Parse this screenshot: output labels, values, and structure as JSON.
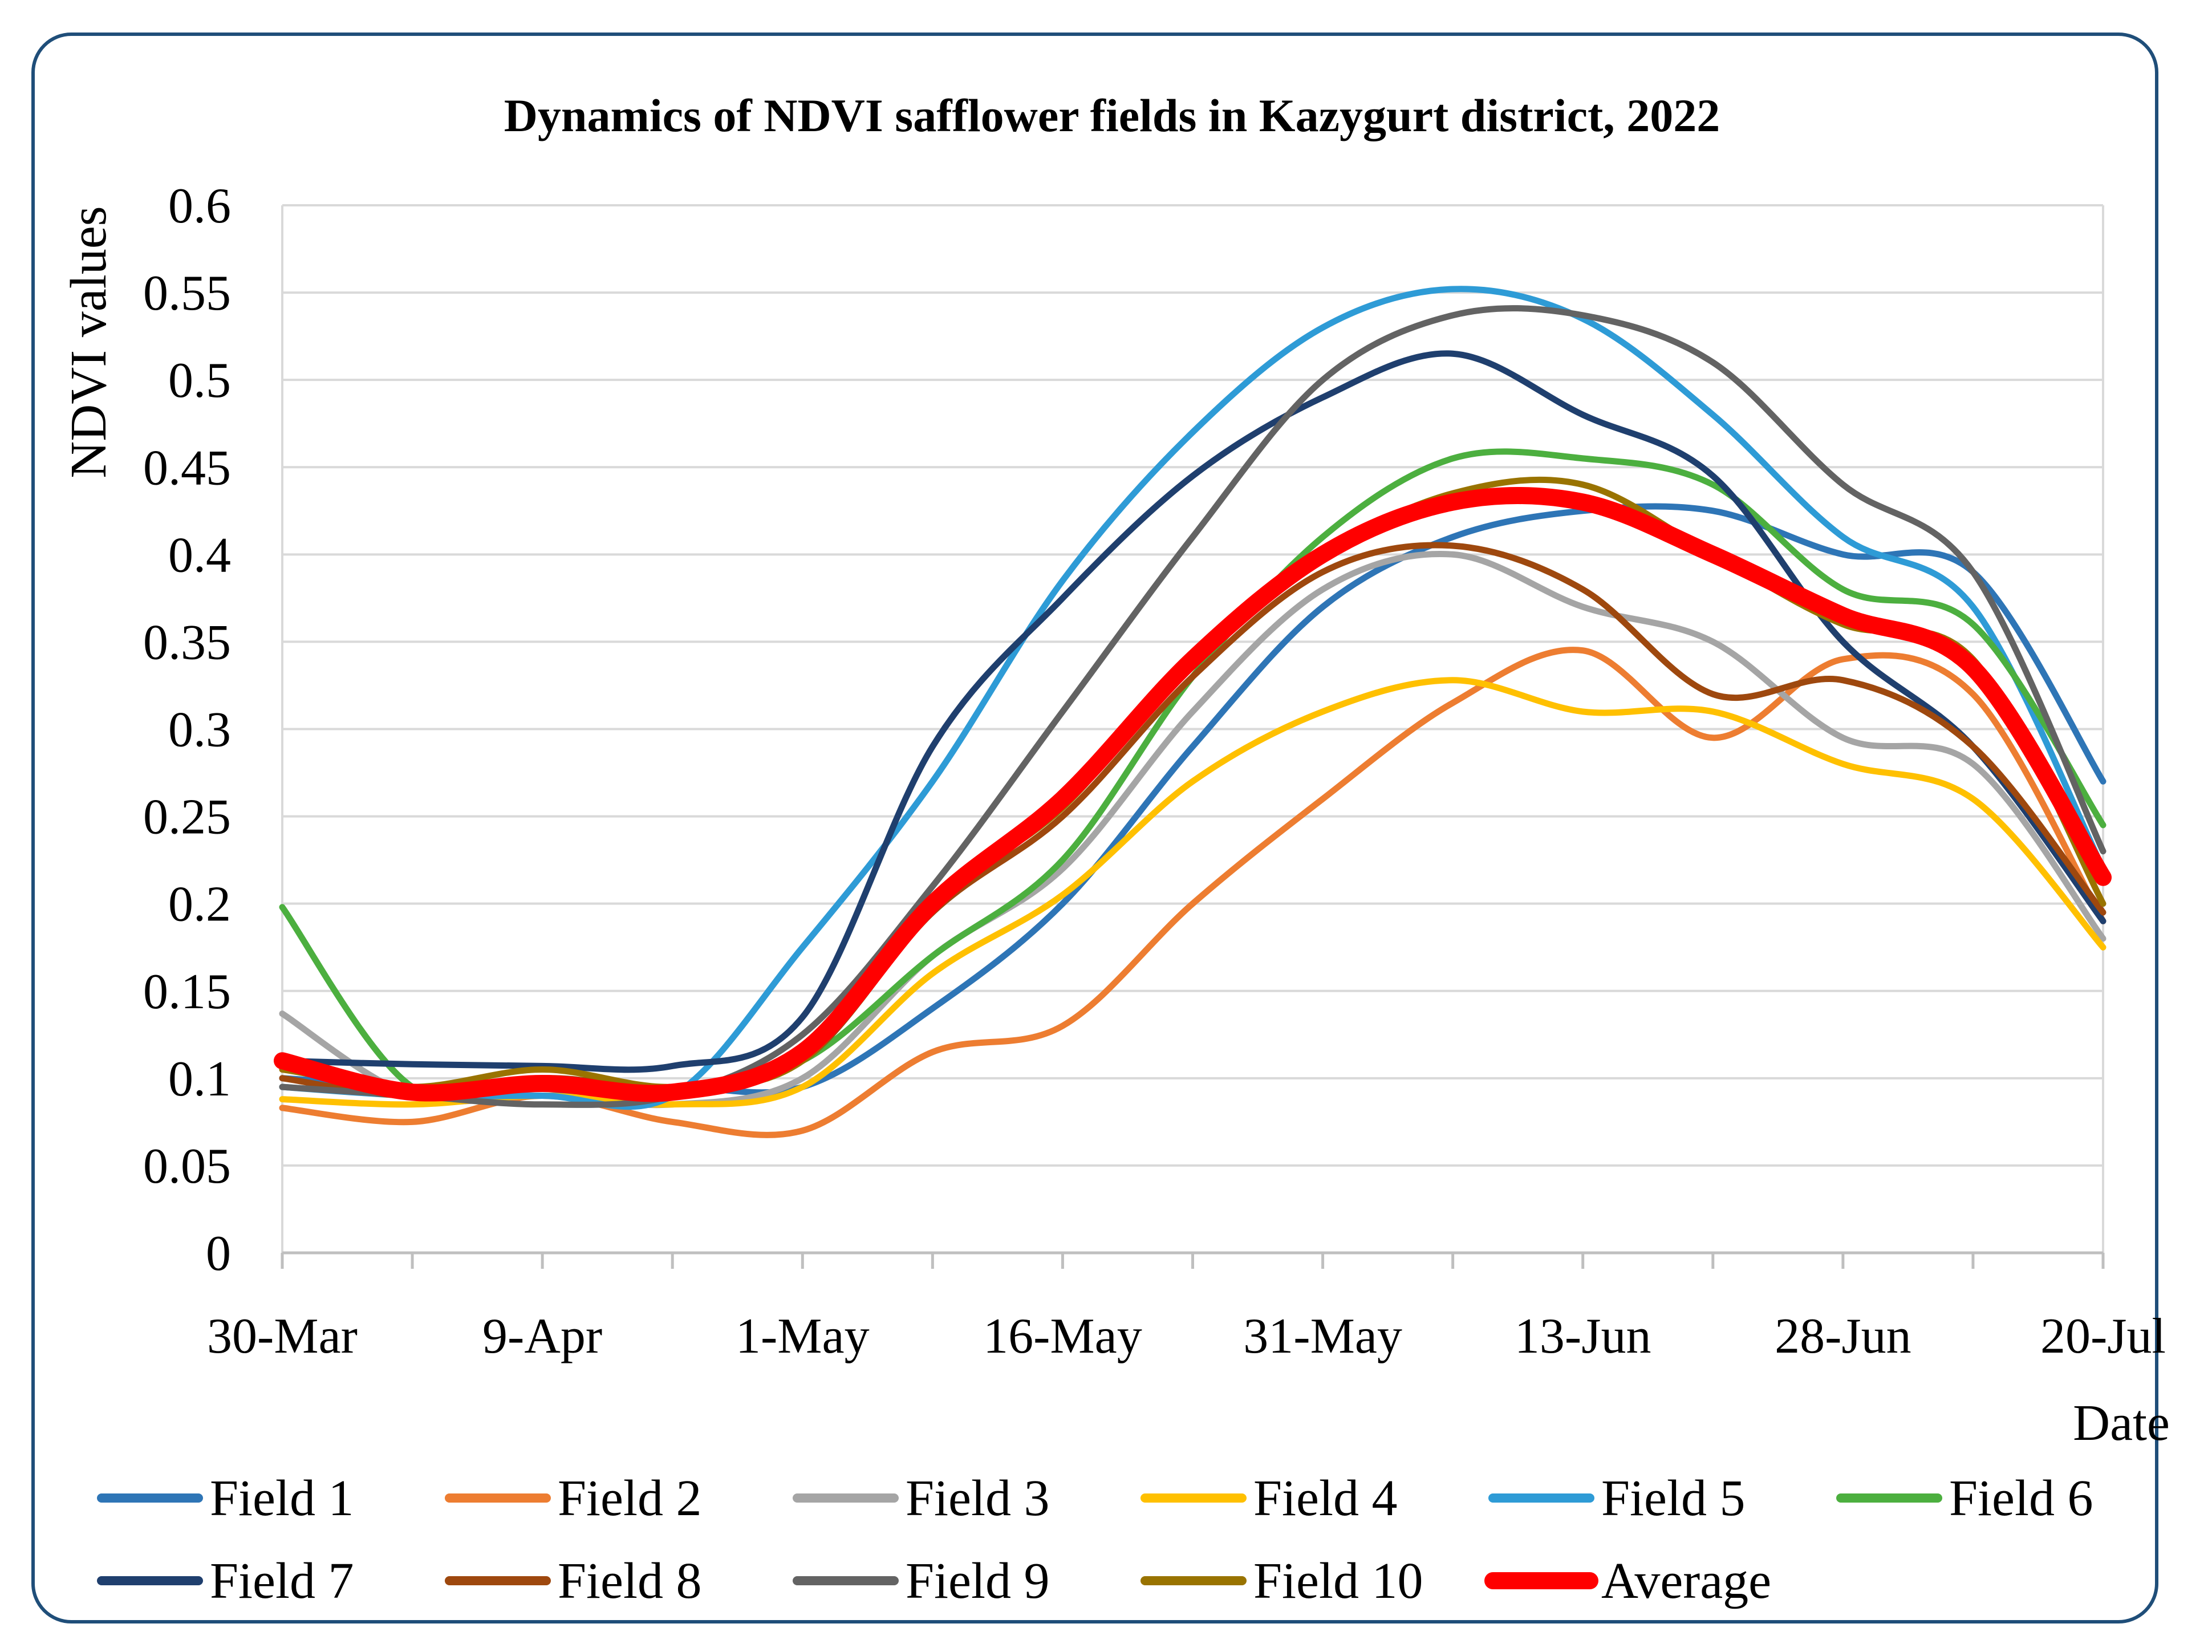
{
  "chart_data": {
    "type": "line",
    "title": "Dynamics of NDVI safflower fields in Kazygurt district, 2022",
    "xlabel": "Date",
    "ylabel": "NDVI values",
    "ylim": [
      0,
      0.6
    ],
    "yticks": [
      "0",
      "0.05",
      "0.1",
      "0.15",
      "0.2",
      "0.25",
      "0.3",
      "0.35",
      "0.4",
      "0.45",
      "0.5",
      "0.55",
      "0.6"
    ],
    "x": [
      0,
      0.5,
      1,
      1.5,
      2,
      2.5,
      3,
      3.5,
      4,
      4.5,
      5,
      5.5,
      6,
      6.5,
      7
    ],
    "xtick_labels": [
      "30-Mar",
      "9-Apr",
      "1-May",
      "16-May",
      "31-May",
      "13-Jun",
      "28-Jun",
      "20-Jul"
    ],
    "grid": true,
    "legend_position": "bottom",
    "series": [
      {
        "name": "Field 1",
        "color": "#2e75b6",
        "width": 1,
        "values": [
          0.1,
          0.095,
          0.09,
          0.095,
          0.095,
          0.14,
          0.2,
          0.29,
          0.37,
          0.41,
          0.425,
          0.425,
          0.4,
          0.39,
          0.27
        ]
      },
      {
        "name": "Field 2",
        "color": "#ed7d31",
        "width": 1,
        "values": [
          0.083,
          0.075,
          0.09,
          0.075,
          0.07,
          0.115,
          0.13,
          0.2,
          0.26,
          0.315,
          0.345,
          0.295,
          0.34,
          0.32,
          0.19
        ]
      },
      {
        "name": "Field 3",
        "color": "#a5a5a5",
        "width": 1,
        "values": [
          0.137,
          0.09,
          0.09,
          0.085,
          0.1,
          0.17,
          0.22,
          0.31,
          0.38,
          0.4,
          0.37,
          0.35,
          0.295,
          0.28,
          0.18
        ]
      },
      {
        "name": "Field 4",
        "color": "#ffc000",
        "width": 1,
        "values": [
          0.088,
          0.085,
          0.09,
          0.085,
          0.095,
          0.16,
          0.205,
          0.27,
          0.31,
          0.328,
          0.31,
          0.31,
          0.28,
          0.26,
          0.175
        ]
      },
      {
        "name": "Field 5",
        "color": "#2e9bd6",
        "width": 1,
        "values": [
          0.095,
          0.09,
          0.09,
          0.09,
          0.175,
          0.27,
          0.385,
          0.47,
          0.53,
          0.552,
          0.535,
          0.48,
          0.41,
          0.37,
          0.22
        ]
      },
      {
        "name": "Field 6",
        "color": "#4caf3f",
        "width": 1,
        "values": [
          0.198,
          0.095,
          0.1,
          0.095,
          0.11,
          0.17,
          0.225,
          0.33,
          0.41,
          0.455,
          0.455,
          0.44,
          0.38,
          0.36,
          0.245
        ]
      },
      {
        "name": "Field 7",
        "color": "#1f3f6e",
        "width": 1,
        "values": [
          0.11,
          0.108,
          0.107,
          0.107,
          0.135,
          0.29,
          0.375,
          0.445,
          0.49,
          0.515,
          0.48,
          0.445,
          0.35,
          0.29,
          0.19
        ]
      },
      {
        "name": "Field 8",
        "color": "#9e480e",
        "width": 1,
        "values": [
          0.1,
          0.09,
          0.1,
          0.095,
          0.11,
          0.195,
          0.25,
          0.33,
          0.39,
          0.405,
          0.38,
          0.32,
          0.328,
          0.29,
          0.195
        ]
      },
      {
        "name": "Field 9",
        "color": "#636363",
        "width": 1,
        "values": [
          0.095,
          0.09,
          0.085,
          0.09,
          0.125,
          0.21,
          0.31,
          0.41,
          0.5,
          0.537,
          0.537,
          0.51,
          0.44,
          0.39,
          0.23
        ]
      },
      {
        "name": "Field 10",
        "color": "#997300",
        "width": 1,
        "values": [
          0.105,
          0.095,
          0.105,
          0.095,
          0.11,
          0.2,
          0.255,
          0.34,
          0.4,
          0.435,
          0.44,
          0.4,
          0.36,
          0.34,
          0.2
        ]
      },
      {
        "name": "Average",
        "color": "#ff0000",
        "width": 2.6,
        "values": [
          0.11,
          0.092,
          0.097,
          0.092,
          0.115,
          0.2,
          0.26,
          0.34,
          0.4,
          0.43,
          0.43,
          0.4,
          0.365,
          0.335,
          0.215
        ]
      }
    ]
  }
}
